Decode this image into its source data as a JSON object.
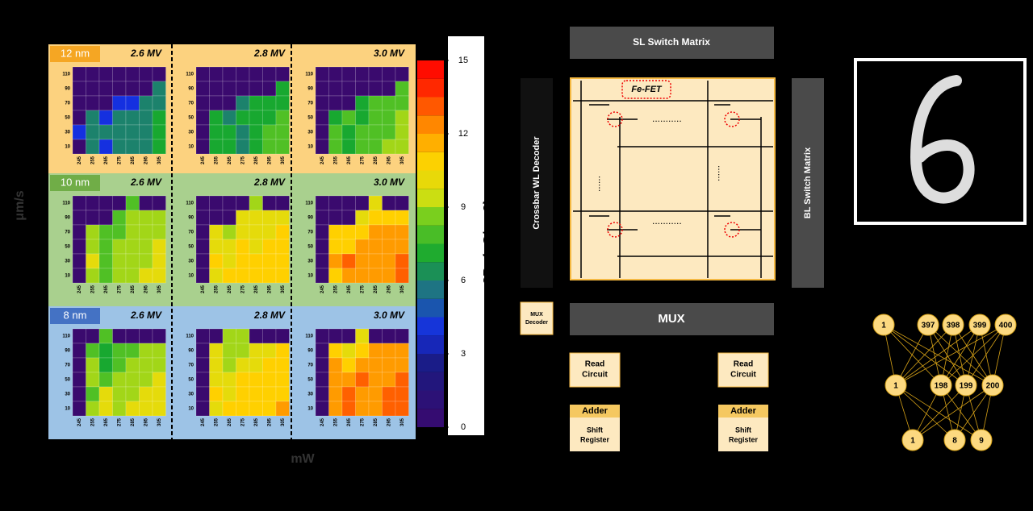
{
  "heatmaps": {
    "ylabel": "μm/s",
    "xlabel": "mW",
    "x_labels": [
      245,
      255,
      265,
      275,
      285,
      295,
      305
    ],
    "y_labels": [
      110,
      90,
      70,
      50,
      30,
      10
    ],
    "colorbar": {
      "label": "2Pr (μC/cm2)",
      "lim": [
        0,
        15
      ],
      "ticks": [
        0,
        3,
        6,
        9,
        12,
        15
      ]
    },
    "groups": [
      {
        "thickness": "12 nm",
        "panels": [
          {
            "title": "2.6 MV",
            "values": [
              [
                0,
                0,
                0,
                0,
                0,
                0,
                0
              ],
              [
                0,
                0,
                0,
                0,
                0,
                0,
                6
              ],
              [
                0,
                0,
                0,
                4,
                4,
                6,
                6
              ],
              [
                0,
                6,
                4,
                6,
                6,
                6,
                7
              ],
              [
                4,
                6,
                6,
                6,
                6,
                6,
                7
              ],
              [
                0,
                6,
                4,
                6,
                6,
                6,
                7
              ]
            ]
          },
          {
            "title": "2.8 MV",
            "values": [
              [
                0,
                0,
                0,
                0,
                0,
                0,
                0
              ],
              [
                0,
                0,
                0,
                0,
                0,
                0,
                7
              ],
              [
                0,
                0,
                0,
                6,
                7,
                7,
                7
              ],
              [
                0,
                7,
                6,
                7,
                7,
                7,
                8
              ],
              [
                0,
                7,
                7,
                6,
                7,
                8,
                8
              ],
              [
                0,
                7,
                7,
                6,
                7,
                8,
                8
              ]
            ]
          },
          {
            "title": "3.0 MV",
            "values": [
              [
                0,
                0,
                0,
                0,
                0,
                0,
                0
              ],
              [
                0,
                0,
                0,
                0,
                0,
                0,
                8
              ],
              [
                0,
                0,
                0,
                7,
                8,
                8,
                8
              ],
              [
                0,
                7,
                8,
                7,
                8,
                8,
                9
              ],
              [
                0,
                8,
                7,
                8,
                8,
                8,
                9
              ],
              [
                0,
                8,
                7,
                8,
                8,
                9,
                9
              ]
            ]
          }
        ]
      },
      {
        "thickness": "10 nm",
        "panels": [
          {
            "title": "2.6 MV",
            "values": [
              [
                0,
                0,
                0,
                0,
                8,
                0,
                0
              ],
              [
                0,
                0,
                0,
                8,
                9,
                9,
                9
              ],
              [
                0,
                9,
                8,
                8,
                9,
                9,
                9
              ],
              [
                0,
                9,
                8,
                9,
                9,
                9,
                10
              ],
              [
                0,
                10,
                8,
                9,
                9,
                9,
                10
              ],
              [
                0,
                9,
                8,
                9,
                9,
                10,
                10
              ]
            ]
          },
          {
            "title": "2.8 MV",
            "values": [
              [
                0,
                0,
                0,
                0,
                9,
                0,
                0
              ],
              [
                0,
                0,
                0,
                10,
                10,
                10,
                10
              ],
              [
                0,
                10,
                9,
                10,
                10,
                10,
                11
              ],
              [
                0,
                10,
                10,
                11,
                10,
                11,
                11
              ],
              [
                0,
                11,
                10,
                11,
                11,
                11,
                11
              ],
              [
                0,
                10,
                11,
                11,
                11,
                11,
                11
              ]
            ]
          },
          {
            "title": "3.0 MV",
            "values": [
              [
                0,
                0,
                0,
                0,
                10,
                0,
                0
              ],
              [
                0,
                0,
                0,
                10,
                11,
                11,
                11
              ],
              [
                0,
                11,
                11,
                11,
                12,
                12,
                12
              ],
              [
                0,
                11,
                11,
                12,
                12,
                12,
                12
              ],
              [
                0,
                12,
                13,
                12,
                12,
                12,
                13
              ],
              [
                0,
                11,
                12,
                12,
                12,
                12,
                13
              ]
            ]
          }
        ]
      },
      {
        "thickness": "8 nm",
        "panels": [
          {
            "title": "2.6 MV",
            "values": [
              [
                0,
                0,
                8,
                0,
                0,
                0,
                0
              ],
              [
                0,
                8,
                7,
                8,
                8,
                9,
                9
              ],
              [
                0,
                9,
                7,
                8,
                9,
                9,
                9
              ],
              [
                0,
                9,
                8,
                9,
                9,
                9,
                10
              ],
              [
                0,
                8,
                10,
                9,
                9,
                10,
                10
              ],
              [
                0,
                9,
                10,
                9,
                10,
                10,
                10
              ]
            ]
          },
          {
            "title": "2.8 MV",
            "values": [
              [
                0,
                0,
                9,
                9,
                0,
                0,
                0
              ],
              [
                0,
                10,
                9,
                9,
                10,
                10,
                11
              ],
              [
                0,
                10,
                9,
                10,
                10,
                11,
                11
              ],
              [
                0,
                10,
                10,
                11,
                11,
                11,
                11
              ],
              [
                0,
                11,
                10,
                11,
                11,
                11,
                11
              ],
              [
                0,
                10,
                11,
                11,
                11,
                11,
                12
              ]
            ]
          },
          {
            "title": "3.0 MV",
            "values": [
              [
                0,
                0,
                0,
                10,
                0,
                0,
                0
              ],
              [
                0,
                11,
                10,
                11,
                12,
                12,
                12
              ],
              [
                0,
                12,
                11,
                12,
                12,
                12,
                12
              ],
              [
                0,
                12,
                12,
                13,
                12,
                12,
                13
              ],
              [
                0,
                12,
                13,
                12,
                12,
                13,
                13
              ],
              [
                0,
                12,
                13,
                12,
                12,
                13,
                13
              ]
            ]
          }
        ]
      }
    ]
  },
  "circuit": {
    "sl_switch": "SL Switch Matrix",
    "wl_decoder": "Crossbar WL Decoder",
    "bl_switch": "BL Switch Matrix",
    "fefet": "Fe-FET",
    "mux_decoder": [
      "MUX",
      "Decoder"
    ],
    "mux": "MUX",
    "read_circuit": [
      "Read",
      "Circuit"
    ],
    "adder": "Adder",
    "shift_register": [
      "Shift",
      "Register"
    ]
  },
  "network": {
    "layers": [
      [
        "1",
        "397",
        "398",
        "399",
        "400"
      ],
      [
        "1",
        "198",
        "199",
        "200"
      ],
      [
        "1",
        "8",
        "9"
      ]
    ]
  }
}
